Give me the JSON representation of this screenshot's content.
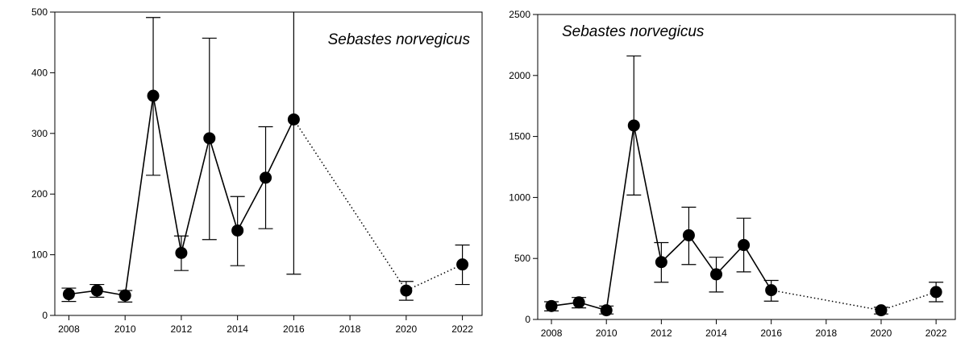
{
  "chart_data": [
    {
      "type": "line",
      "title": "Sebastes norvegicus",
      "xlabel": "",
      "ylabel": "",
      "xlim": [
        2007.5,
        2022.7
      ],
      "ylim": [
        0,
        500
      ],
      "xticks": [
        2008,
        2010,
        2012,
        2014,
        2016,
        2018,
        2020,
        2022
      ],
      "yticks": [
        0,
        100,
        200,
        300,
        400,
        500
      ],
      "grid": false,
      "series": [
        {
          "points": [
            {
              "x": 2008,
              "y": 35,
              "lower": 23,
              "upper": 45
            },
            {
              "x": 2009,
              "y": 41,
              "lower": 30,
              "upper": 51
            },
            {
              "x": 2010,
              "y": 33,
              "lower": 22,
              "upper": 41
            },
            {
              "x": 2011,
              "y": 362,
              "lower": 231,
              "upper": 491
            },
            {
              "x": 2012,
              "y": 103,
              "lower": 74,
              "upper": 131
            },
            {
              "x": 2013,
              "y": 292,
              "lower": 125,
              "upper": 457
            },
            {
              "x": 2014,
              "y": 140,
              "lower": 82,
              "upper": 196
            },
            {
              "x": 2015,
              "y": 227,
              "lower": 143,
              "upper": 311
            },
            {
              "x": 2016,
              "y": 323,
              "lower": 68,
              "upper": 500,
              "upper_clipped": true
            },
            {
              "x": 2020,
              "y": 41,
              "lower": 25,
              "upper": 56
            },
            {
              "x": 2022,
              "y": 84,
              "lower": 51,
              "upper": 116
            }
          ],
          "solid_segments": [
            [
              0,
              8
            ]
          ],
          "dotted_segments": [
            [
              8,
              10
            ]
          ]
        }
      ]
    },
    {
      "type": "line",
      "title": "Sebastes norvegicus",
      "xlabel": "",
      "ylabel": "",
      "xlim": [
        2007.5,
        2022.7
      ],
      "ylim": [
        0,
        2500
      ],
      "xticks": [
        2008,
        2010,
        2012,
        2014,
        2016,
        2018,
        2020,
        2022
      ],
      "yticks": [
        0,
        500,
        1000,
        1500,
        2000,
        2500
      ],
      "grid": false,
      "series": [
        {
          "points": [
            {
              "x": 2008,
              "y": 110,
              "lower": 70,
              "upper": 145
            },
            {
              "x": 2009,
              "y": 140,
              "lower": 95,
              "upper": 180
            },
            {
              "x": 2010,
              "y": 75,
              "lower": 45,
              "upper": 110
            },
            {
              "x": 2011,
              "y": 1590,
              "lower": 1020,
              "upper": 2160
            },
            {
              "x": 2012,
              "y": 470,
              "lower": 305,
              "upper": 630
            },
            {
              "x": 2013,
              "y": 690,
              "lower": 450,
              "upper": 920
            },
            {
              "x": 2014,
              "y": 370,
              "lower": 225,
              "upper": 510
            },
            {
              "x": 2015,
              "y": 610,
              "lower": 390,
              "upper": 830
            },
            {
              "x": 2016,
              "y": 240,
              "lower": 150,
              "upper": 320
            },
            {
              "x": 2020,
              "y": 75,
              "lower": 45,
              "upper": 100
            },
            {
              "x": 2022,
              "y": 225,
              "lower": 145,
              "upper": 305
            }
          ],
          "solid_segments": [
            [
              0,
              8
            ]
          ],
          "dotted_segments": [
            [
              8,
              10
            ]
          ]
        }
      ]
    }
  ]
}
